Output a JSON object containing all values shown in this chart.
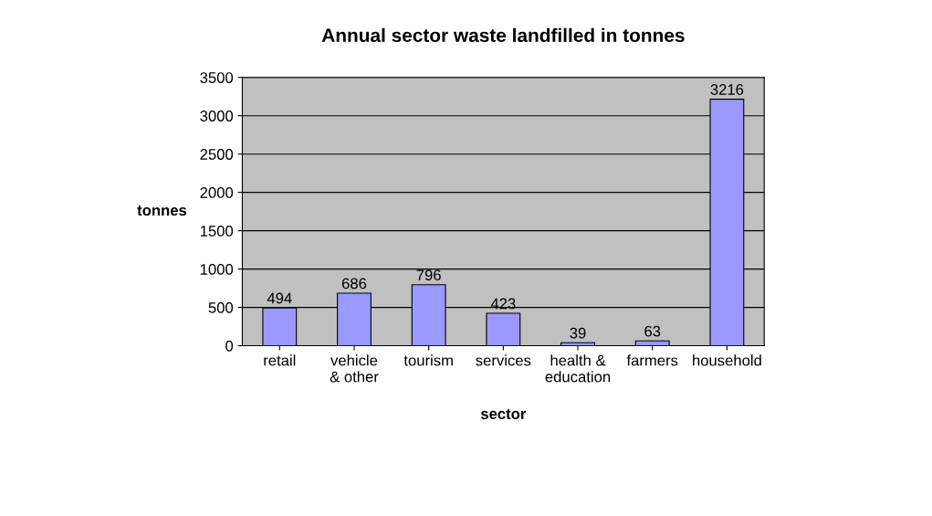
{
  "chart_data": {
    "type": "bar",
    "title": "Annual sector waste landfilled in tonnes",
    "xlabel": "sector",
    "ylabel": "tonnes",
    "categories": [
      "retail",
      "vehicle & other",
      "tourism",
      "services",
      "health & education",
      "farmers",
      "household"
    ],
    "values": [
      494,
      686,
      796,
      423,
      39,
      63,
      3216
    ],
    "color": "#9999ff",
    "ylim": [
      0,
      3500
    ],
    "yticks": [
      0,
      500,
      1000,
      1500,
      2000,
      2500,
      3000,
      3500
    ],
    "grid": "y",
    "data_labels": true
  }
}
